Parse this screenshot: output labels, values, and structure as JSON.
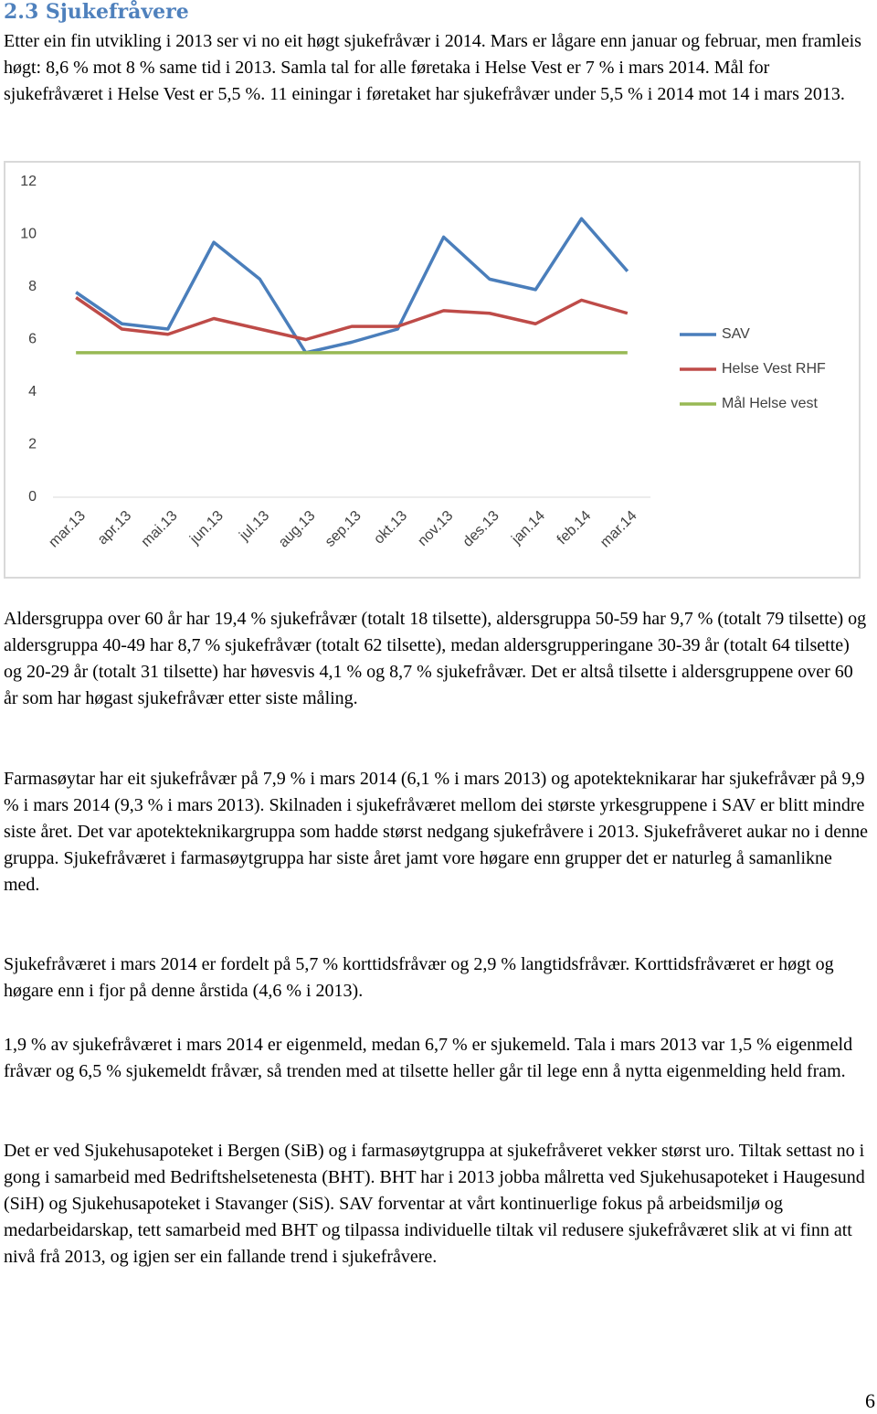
{
  "heading": "2.3 Sjukefråvere",
  "intro": "Etter ein fin utvikling i 2013 ser vi no eit høgt sjukefråvær i 2014. Mars er lågare enn januar og februar, men framleis høgt: 8,6 % mot 8 % same tid i 2013. Samla tal for alle føretaka i Helse Vest er 7 % i mars 2014. Mål for sjukefråværet i Helse Vest er 5,5 %. 11 einingar i føretaket har sjukefråvær under 5,5 % i 2014 mot 14 i mars 2013.",
  "chart_data": {
    "type": "line",
    "categories": [
      "mar.13",
      "apr.13",
      "mai.13",
      "jun.13",
      "jul.13",
      "aug.13",
      "sep.13",
      "okt.13",
      "nov.13",
      "des.13",
      "jan.14",
      "feb.14",
      "mar.14"
    ],
    "series": [
      {
        "name": "SAV",
        "color": "#4a7ebb",
        "values": [
          7.8,
          6.6,
          6.4,
          9.7,
          8.3,
          5.5,
          5.9,
          6.4,
          9.9,
          8.3,
          7.9,
          10.6,
          8.6
        ]
      },
      {
        "name": "Helse Vest RHF",
        "color": "#be4b48",
        "values": [
          7.6,
          6.4,
          6.2,
          6.8,
          6.4,
          6.0,
          6.5,
          6.5,
          7.1,
          7.0,
          6.6,
          7.5,
          7.0
        ]
      },
      {
        "name": "Mål Helse vest",
        "color": "#98b954",
        "values": [
          5.5,
          5.5,
          5.5,
          5.5,
          5.5,
          5.5,
          5.5,
          5.5,
          5.5,
          5.5,
          5.5,
          5.5,
          5.5
        ]
      }
    ],
    "ylim": [
      0,
      12
    ],
    "yticks": [
      0,
      2,
      4,
      6,
      8,
      10,
      12
    ],
    "grid": false,
    "legend": "right"
  },
  "paragraphs": [
    "Aldersgruppa over 60 år har 19,4 % sjukefråvær (totalt 18 tilsette), aldersgruppa 50-59 har 9,7 % (totalt 79 tilsette) og aldersgruppa 40-49 har 8,7 % sjukefråvær (totalt 62 tilsette), medan aldersgrupperingane 30-39 år (totalt 64 tilsette) og 20-29 år (totalt 31 tilsette) har høvesvis 4,1 % og 8,7 % sjukefråvær. Det er altså tilsette i aldersgruppene over 60 år som har høgast sjukefråvær etter siste måling.",
    "Farmasøytar har eit sjukefråvær på 7,9 % i mars 2014 (6,1 % i mars 2013) og apotekteknikarar har sjukefråvær på 9,9 % i mars 2014 (9,3 % i mars 2013). Skilnaden i sjukefråværet mellom dei største yrkesgruppene i SAV er blitt mindre siste året. Det var apotekteknikargruppa som hadde størst nedgang sjukefråvere i 2013. Sjukefråveret aukar no i denne gruppa. Sjukefråværet i farmasøytgruppa har siste året jamt vore høgare enn grupper det er naturleg å samanlikne med.",
    "Sjukefråværet i mars 2014 er fordelt på 5,7 % korttidsfråvær og 2,9 % langtidsfråvær. Korttidsfråværet er høgt og høgare enn i fjor på denne årstida (4,6 % i 2013).",
    "1,9 % av sjukefråværet i mars 2014 er eigenmeld, medan 6,7 % er sjukemeld. Tala i mars 2013 var 1,5 % eigenmeld fråvær og 6,5 % sjukemeldt fråvær, så trenden med at tilsette heller går til lege enn å nytta eigenmelding held fram.",
    "Det er ved Sjukehusapoteket i Bergen (SiB) og i farmasøytgruppa at sjukefråveret vekker størst uro. Tiltak settast no i gong i samarbeid med Bedriftshelsetenesta (BHT). BHT har i 2013 jobba målretta ved Sjukehusapoteket i Haugesund (SiH) og Sjukehusapoteket i Stavanger (SiS). SAV forventar at vårt kontinuerlige fokus på arbeidsmiljø og medarbeidarskap, tett samarbeid med BHT og tilpassa individuelle tiltak vil redusere sjukefråværet slik at vi finn att nivå frå 2013, og igjen ser ein fallande trend i sjukefråvere."
  ],
  "page_number": "6"
}
